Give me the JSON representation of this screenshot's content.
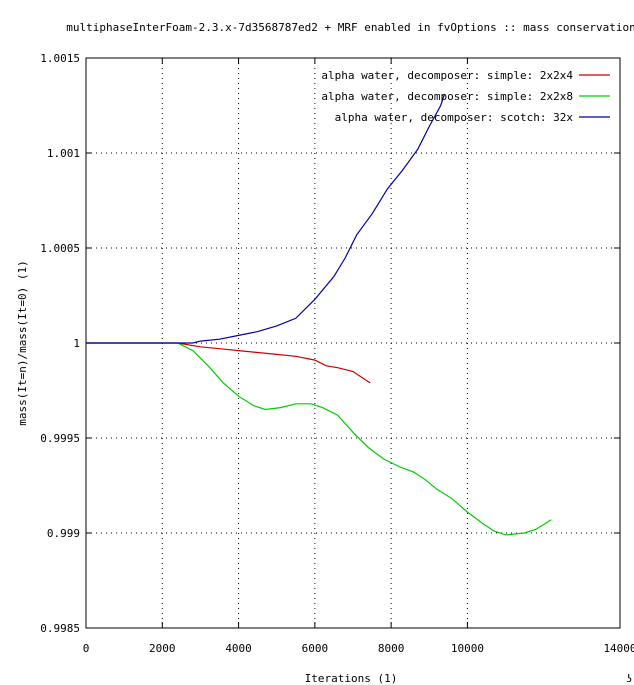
{
  "chart_data": {
    "type": "line",
    "title": "multiphaseInterFoam-2.3.x-7d3568787ed2 + MRF enabled in fvOptions :: mass conservation",
    "xlabel": "Iterations (1)",
    "ylabel": "mass(It=n)/mass(It=0) (1)",
    "xlim": [
      0,
      14000
    ],
    "ylim": [
      0.9985,
      1.0015
    ],
    "x_ticks": [
      "0",
      "2000",
      "4000",
      "6000",
      "8000",
      "10000",
      "14000"
    ],
    "y_ticks": [
      "0.9985",
      "0.999",
      "0.9995",
      "1",
      "1.0005",
      "1.001",
      "1.0015"
    ],
    "grid": true,
    "legend_position": "top-right",
    "series": [
      {
        "name": "alpha water, decomposer: simple: 2x2x4",
        "color": "#cc0000",
        "points": [
          [
            0,
            1.0
          ],
          [
            2400,
            1.0
          ],
          [
            3000,
            0.99998
          ],
          [
            3500,
            0.99997
          ],
          [
            4000,
            0.99996
          ],
          [
            4500,
            0.99995
          ],
          [
            5000,
            0.99994
          ],
          [
            5500,
            0.99993
          ],
          [
            6000,
            0.99991
          ],
          [
            6300,
            0.99988
          ],
          [
            6600,
            0.99987
          ],
          [
            7000,
            0.99985
          ],
          [
            7300,
            0.99981
          ],
          [
            7450,
            0.99979
          ]
        ]
      },
      {
        "name": "alpha water, decomposer: simple: 2x2x8",
        "color": "#00cc00",
        "points": [
          [
            0,
            1.0
          ],
          [
            2400,
            1.0
          ],
          [
            2800,
            0.99996
          ],
          [
            3200,
            0.99988
          ],
          [
            3600,
            0.99979
          ],
          [
            4000,
            0.99972
          ],
          [
            4400,
            0.99967
          ],
          [
            4700,
            0.99965
          ],
          [
            5100,
            0.99966
          ],
          [
            5500,
            0.99968
          ],
          [
            5900,
            0.99968
          ],
          [
            6200,
            0.99966
          ],
          [
            6600,
            0.99962
          ],
          [
            7000,
            0.99953
          ],
          [
            7400,
            0.99945
          ],
          [
            7800,
            0.99939
          ],
          [
            8200,
            0.99935
          ],
          [
            8600,
            0.99932
          ],
          [
            8900,
            0.99928
          ],
          [
            9200,
            0.99923
          ],
          [
            9600,
            0.99918
          ],
          [
            10000,
            0.99911
          ],
          [
            10400,
            0.99905
          ],
          [
            10700,
            0.99901
          ],
          [
            11000,
            0.99899
          ],
          [
            11500,
            0.999
          ],
          [
            11800,
            0.99902
          ],
          [
            12200,
            0.99907
          ]
        ]
      },
      {
        "name": "alpha water, decomposer: scotch: 32x",
        "color": "#0000aa",
        "points": [
          [
            0,
            1.0
          ],
          [
            2800,
            1.0
          ],
          [
            3000,
            1.00001
          ],
          [
            3500,
            1.00002
          ],
          [
            4000,
            1.00004
          ],
          [
            4500,
            1.00006
          ],
          [
            5000,
            1.00009
          ],
          [
            5500,
            1.00013
          ],
          [
            6000,
            1.00023
          ],
          [
            6500,
            1.00035
          ],
          [
            6800,
            1.00045
          ],
          [
            7100,
            1.00057
          ],
          [
            7500,
            1.00068
          ],
          [
            7900,
            1.00081
          ],
          [
            8300,
            1.00091
          ],
          [
            8700,
            1.00102
          ],
          [
            9000,
            1.00114
          ],
          [
            9300,
            1.00125
          ],
          [
            9400,
            1.00131
          ]
        ]
      }
    ],
    "corner_mark": "ʖ"
  }
}
